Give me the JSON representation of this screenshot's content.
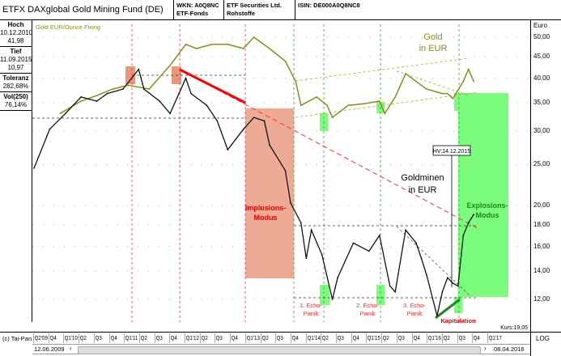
{
  "header": {
    "title": "ETFX DAXglobal Gold Mining Fund (DE)",
    "wkn": "WKN: A0Q8NC",
    "type": "ETF-Fonds",
    "issuer": "ETF Securities Ltd.",
    "category": "Rohstoffe",
    "isin": "ISIN: DE000A0Q8NC8"
  },
  "stats": [
    {
      "label": "Hoch",
      "date": "10.12.2010",
      "value": "41,98"
    },
    {
      "label": "Tief",
      "date": "11.09.2015",
      "value": "10,97"
    },
    {
      "label": "Toleranz",
      "value": "282,68%"
    },
    {
      "label": "Vol(250)",
      "value": "76,14%"
    }
  ],
  "legend": "Gold EUR/Ounce Fixing",
  "footer": {
    "copyright": "(c) Tai-Pan",
    "kurs": "Kurs:19,05",
    "start": "12.06.2009",
    "end": "08.04.2016",
    "scale": "LOG"
  },
  "colors": {
    "miners": "#000000",
    "gold": "#8b8b1a",
    "implosion": "#e9967a",
    "explosion": "#7cfc7c",
    "trend": "#ff0000"
  },
  "annotations": {
    "gold": [
      "Gold",
      "in EUR"
    ],
    "miners": [
      "Goldminen",
      "in EUR"
    ],
    "implosion": [
      "Implusions-",
      "Modus"
    ],
    "explosion": [
      "Explosions-",
      "Modus"
    ],
    "echo1": [
      "1. Echo-",
      "Panik"
    ],
    "echo2": [
      "2. Echo-",
      "Panik"
    ],
    "echo3": [
      "3. Echo-",
      "Panik"
    ],
    "capitulation": "Kapitulation",
    "hv": "HV:14.12.2015"
  },
  "chart_data": {
    "type": "line",
    "yscale": "log",
    "ylabel": "Euro",
    "ylim": [
      11,
      52
    ],
    "yticks": [
      "50,00",
      "45,00",
      "40,00",
      "35,00",
      "30,00",
      "25,00",
      "20,00",
      "18,00",
      "16,00",
      "14,00",
      "12,00"
    ],
    "xticks": [
      "Q2'09",
      "Q4",
      "Q1'10",
      "Q2",
      "Q3",
      "Q4",
      "Q1'11",
      "Q2",
      "Q3",
      "Q4",
      "Q1'12",
      "Q2",
      "Q3",
      "Q4",
      "Q1'13",
      "Q2",
      "Q3",
      "Q4",
      "Q1'14",
      "Q2",
      "Q3",
      "Q4",
      "Q1'15",
      "Q2",
      "Q3",
      "Q4",
      "Q1'16",
      "Q2",
      "Q3",
      "Q4",
      "Q1'17"
    ],
    "series": [
      {
        "name": "ETFX DAXglobal Gold Mining Fund (DE)",
        "points": [
          [
            "2009-04",
            24.5
          ],
          [
            "2009-07",
            30.3
          ],
          [
            "2009-10",
            33.0
          ],
          [
            "2010-01",
            36.1
          ],
          [
            "2010-04",
            35.3
          ],
          [
            "2010-06",
            36.8
          ],
          [
            "2010-09",
            37.7
          ],
          [
            "2010-12",
            41.98
          ],
          [
            "2011-01",
            37.7
          ],
          [
            "2011-04",
            35.3
          ],
          [
            "2011-06",
            33.0
          ],
          [
            "2011-09",
            40.0
          ],
          [
            "2011-10",
            36.8
          ],
          [
            "2012-01",
            34.5
          ],
          [
            "2012-03",
            31.7
          ],
          [
            "2012-05",
            27.1
          ],
          [
            "2012-08",
            30.3
          ],
          [
            "2012-10",
            32.3
          ],
          [
            "2012-12",
            31.7
          ],
          [
            "2013-01",
            27.8
          ],
          [
            "2013-04",
            24.2
          ],
          [
            "2013-05",
            20.3
          ],
          [
            "2013-07",
            18.2
          ],
          [
            "2013-08",
            15.0
          ],
          [
            "2013-09",
            17.5
          ],
          [
            "2013-11",
            15.3
          ],
          [
            "2014-01",
            12.0
          ],
          [
            "2014-02",
            13.5
          ],
          [
            "2014-05",
            16.3
          ],
          [
            "2014-08",
            15.6
          ],
          [
            "2014-10",
            17.0
          ],
          [
            "2014-12",
            12.9
          ],
          [
            "2015-01",
            12.5
          ],
          [
            "2015-03",
            17.5
          ],
          [
            "2015-05",
            16.3
          ],
          [
            "2015-06",
            15.0
          ],
          [
            "2015-07",
            13.7
          ],
          [
            "2015-09",
            10.97
          ],
          [
            "2015-10",
            12.5
          ],
          [
            "2015-11",
            13.5
          ],
          [
            "2015-12",
            13.1
          ],
          [
            "2016-01",
            12.9
          ],
          [
            "2016-02",
            17.0
          ],
          [
            "2016-03",
            18.2
          ],
          [
            "2016-04",
            19.05
          ]
        ]
      },
      {
        "name": "Gold EUR/Ounce Fixing",
        "points": [
          [
            "2009-09",
            33.0
          ],
          [
            "2010-01",
            35.3
          ],
          [
            "2010-04",
            36.4
          ],
          [
            "2010-07",
            37.7
          ],
          [
            "2010-10",
            38.5
          ],
          [
            "2011-02",
            37.7
          ],
          [
            "2011-06",
            42.9
          ],
          [
            "2011-09",
            48.1
          ],
          [
            "2011-11",
            47.0
          ],
          [
            "2012-02",
            48.1
          ],
          [
            "2012-05",
            48.1
          ],
          [
            "2012-08",
            47.0
          ],
          [
            "2012-10",
            50.0
          ],
          [
            "2013-01",
            47.0
          ],
          [
            "2013-04",
            43.9
          ],
          [
            "2013-06",
            39.3
          ],
          [
            "2013-07",
            34.5
          ],
          [
            "2013-10",
            36.1
          ],
          [
            "2013-12",
            34.5
          ],
          [
            "2014-01",
            32.3
          ],
          [
            "2014-04",
            34.5
          ],
          [
            "2014-07",
            34.8
          ],
          [
            "2014-10",
            35.3
          ],
          [
            "2014-11",
            33.0
          ],
          [
            "2015-01",
            36.1
          ],
          [
            "2015-03",
            41.0
          ],
          [
            "2015-05",
            39.3
          ],
          [
            "2015-07",
            37.7
          ],
          [
            "2015-10",
            36.8
          ],
          [
            "2015-11",
            36.8
          ],
          [
            "2015-12",
            35.8
          ],
          [
            "2016-02",
            39.3
          ],
          [
            "2016-03",
            42.0
          ],
          [
            "2016-04",
            39.3
          ]
        ]
      }
    ]
  }
}
